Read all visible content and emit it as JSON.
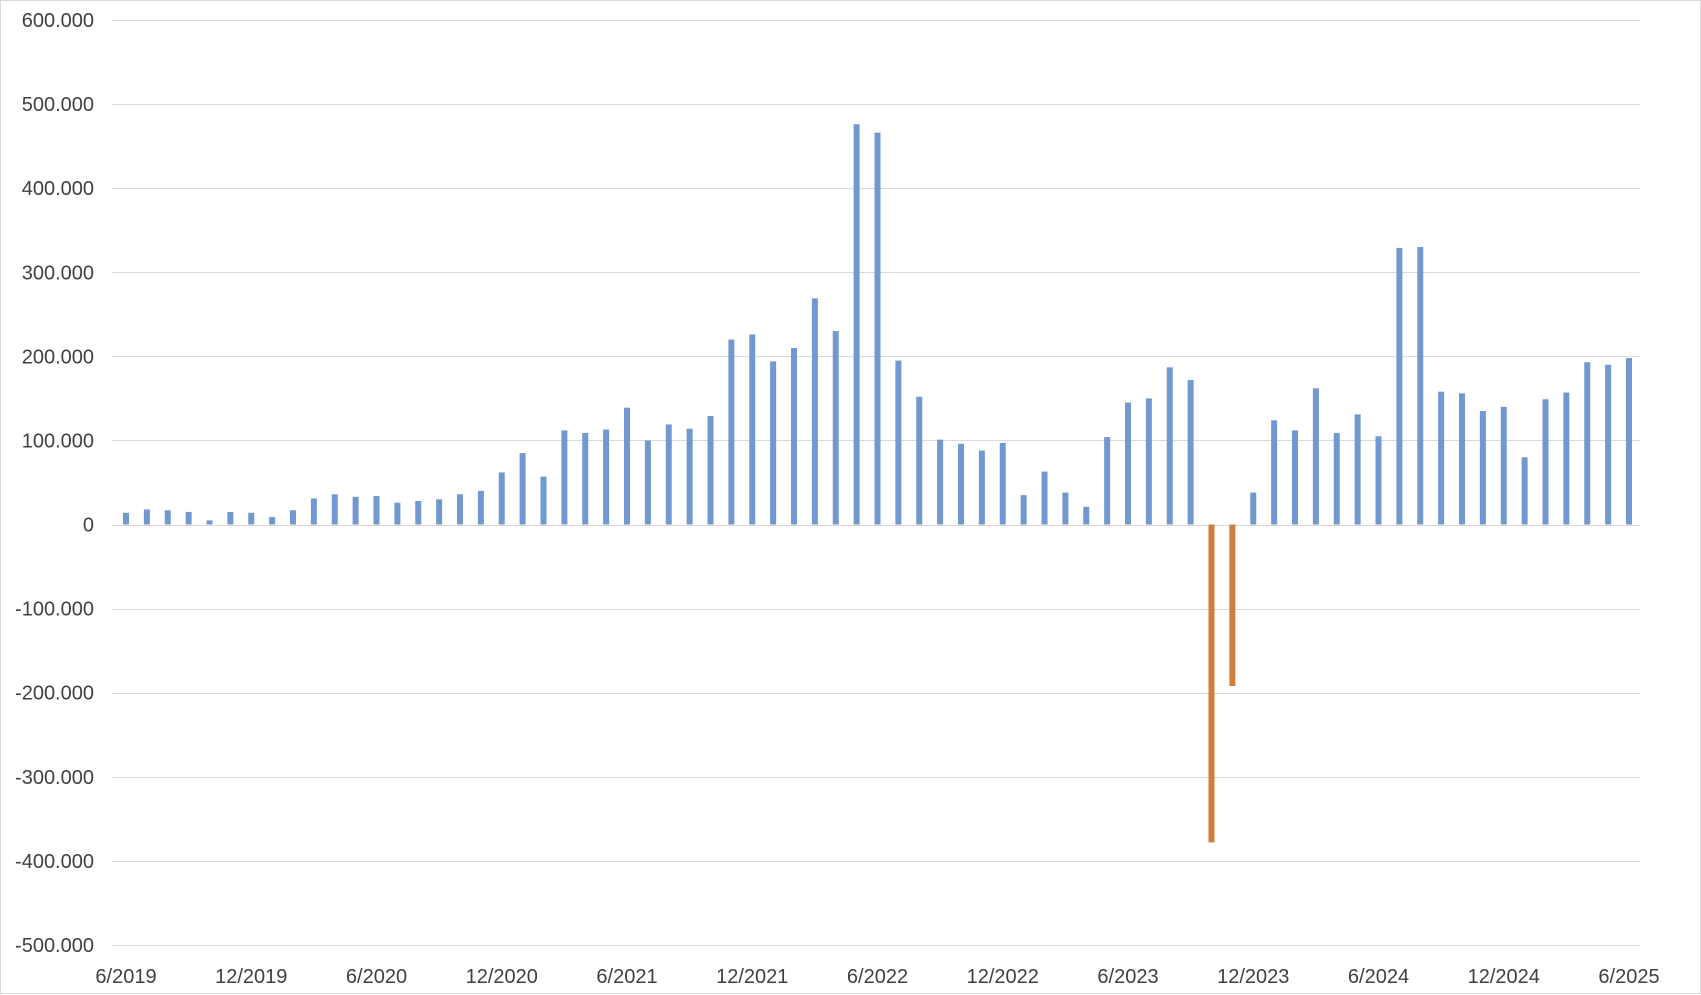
{
  "chart_data": {
    "type": "bar",
    "title": "",
    "xlabel": "",
    "ylabel": "",
    "ylim": [
      -500000,
      600000
    ],
    "grid": true,
    "legend": "none",
    "y_ticks": [
      600000,
      500000,
      400000,
      300000,
      200000,
      100000,
      0,
      -100000,
      -200000,
      -300000,
      -400000,
      -500000
    ],
    "y_tick_labels": [
      "600.000",
      "500.000",
      "400.000",
      "300.000",
      "200.000",
      "100.000",
      "0",
      "-100.000",
      "-200.000",
      "-300.000",
      "-400.000",
      "-500.000"
    ],
    "x_tick_labels": [
      "6/2019",
      "12/2019",
      "6/2020",
      "12/2020",
      "6/2021",
      "12/2021",
      "6/2022",
      "12/2022",
      "6/2023",
      "12/2023",
      "6/2024",
      "12/2024",
      "6/2025"
    ],
    "x_tick_months": [
      "2019-06",
      "2019-12",
      "2020-06",
      "2020-12",
      "2021-06",
      "2021-12",
      "2022-06",
      "2022-12",
      "2023-06",
      "2023-12",
      "2024-06",
      "2024-12",
      "2025-06"
    ],
    "positive_color": "#7299cf",
    "negative_color": "#d17d3b",
    "grid_color": "#d9d9d9",
    "months": [
      "2019-06",
      "2019-07",
      "2019-08",
      "2019-09",
      "2019-10",
      "2019-11",
      "2019-12",
      "2020-01",
      "2020-02",
      "2020-03",
      "2020-04",
      "2020-05",
      "2020-06",
      "2020-07",
      "2020-08",
      "2020-09",
      "2020-10",
      "2020-11",
      "2020-12",
      "2021-01",
      "2021-02",
      "2021-03",
      "2021-04",
      "2021-05",
      "2021-06",
      "2021-07",
      "2021-08",
      "2021-09",
      "2021-10",
      "2021-11",
      "2021-12",
      "2022-01",
      "2022-02",
      "2022-03",
      "2022-04",
      "2022-05",
      "2022-06",
      "2022-07",
      "2022-08",
      "2022-09",
      "2022-10",
      "2022-11",
      "2022-12",
      "2023-01",
      "2023-02",
      "2023-03",
      "2023-04",
      "2023-05",
      "2023-06",
      "2023-07",
      "2023-08",
      "2023-09",
      "2023-10",
      "2023-11",
      "2023-12",
      "2024-01",
      "2024-02",
      "2024-03",
      "2024-04",
      "2024-05",
      "2024-06",
      "2024-07",
      "2024-08",
      "2024-09",
      "2024-10",
      "2024-11",
      "2024-12",
      "2025-01",
      "2025-02",
      "2025-03",
      "2025-04",
      "2025-05",
      "2025-06"
    ],
    "values": [
      14000,
      18000,
      17000,
      15000,
      5000,
      15000,
      14000,
      9000,
      17000,
      31000,
      36000,
      33000,
      34000,
      26000,
      28000,
      30000,
      36000,
      40000,
      62000,
      85000,
      57000,
      112000,
      109000,
      113000,
      139000,
      100000,
      119000,
      114000,
      129000,
      220000,
      226000,
      194000,
      210000,
      269000,
      230000,
      476000,
      466000,
      195000,
      152000,
      101000,
      96000,
      88000,
      97000,
      35000,
      63000,
      38000,
      21000,
      104000,
      145000,
      150000,
      187000,
      172000,
      -378000,
      -192000,
      38000,
      124000,
      112000,
      162000,
      109000,
      131000,
      105000,
      329000,
      330000,
      158000,
      156000,
      135000,
      140000,
      80000,
      149000,
      157000,
      193000,
      190000,
      198000
    ]
  }
}
